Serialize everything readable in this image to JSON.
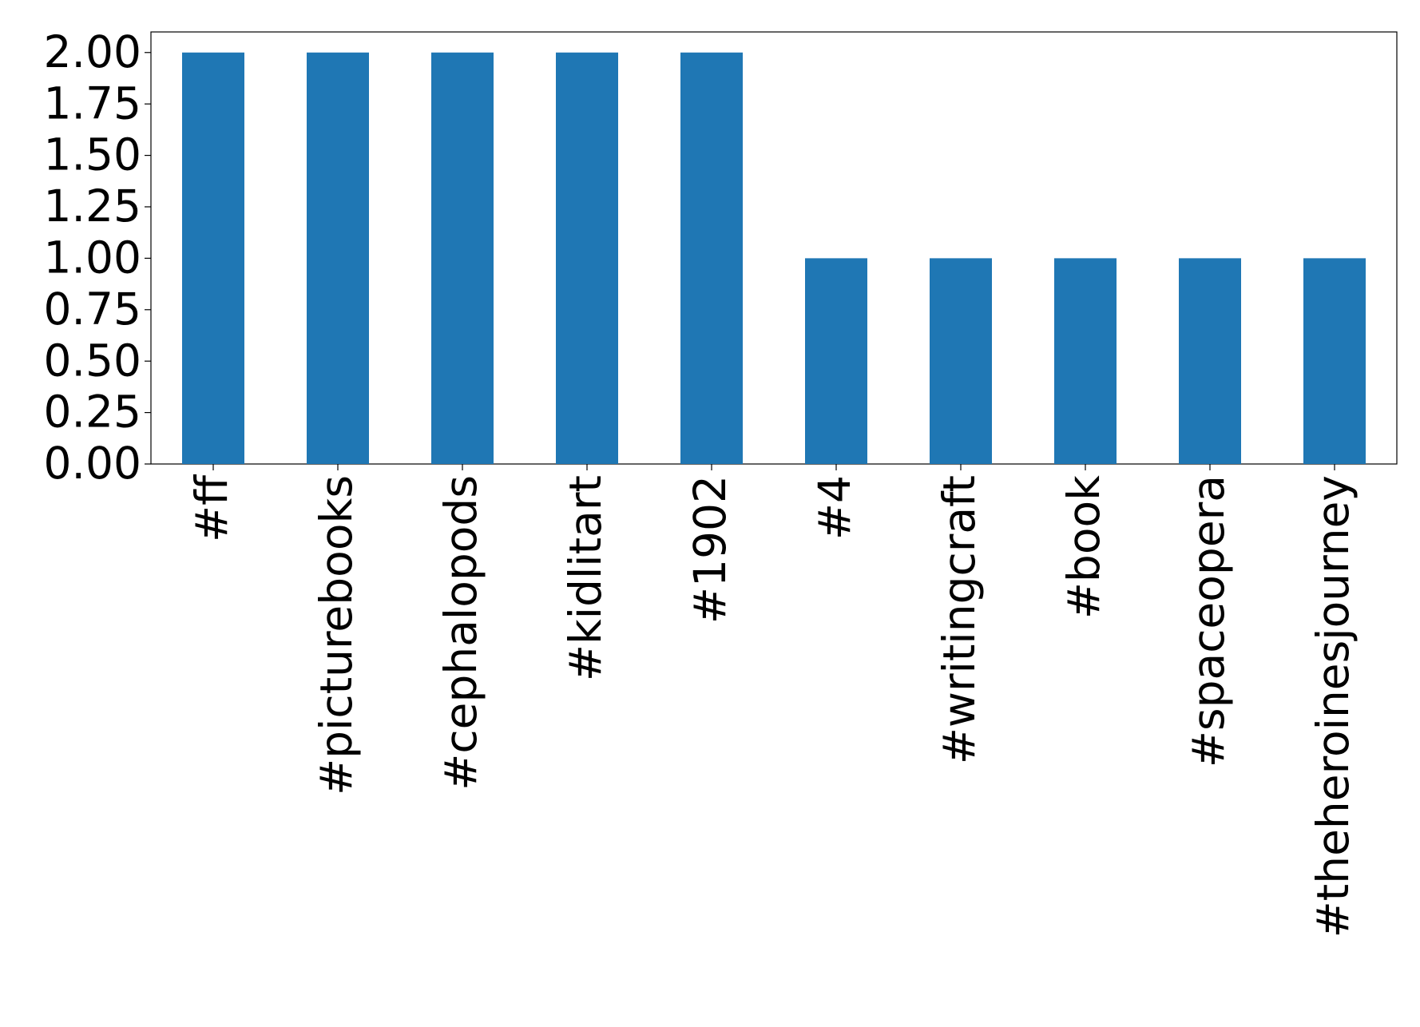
{
  "chart_data": {
    "type": "bar",
    "categories": [
      "#ff",
      "#picturebooks",
      "#cephalopods",
      "#kidlitart",
      "#1902",
      "#4",
      "#writingcraft",
      "#book",
      "#spaceopera",
      "#theheroinesjourney"
    ],
    "values": [
      2,
      2,
      2,
      2,
      2,
      1,
      1,
      1,
      1,
      1
    ],
    "color": "#1f77b4",
    "ylim": [
      0,
      2.1
    ],
    "yticks": [
      {
        "value": 0,
        "label": "0.00"
      },
      {
        "value": 0.25,
        "label": "0.25"
      },
      {
        "value": 0.5,
        "label": "0.50"
      },
      {
        "value": 0.75,
        "label": "0.75"
      },
      {
        "value": 1,
        "label": "1.00"
      },
      {
        "value": 1.25,
        "label": "1.25"
      },
      {
        "value": 1.5,
        "label": "1.50"
      },
      {
        "value": 1.75,
        "label": "1.75"
      },
      {
        "value": 2,
        "label": "2.00"
      }
    ],
    "grid": false
  }
}
